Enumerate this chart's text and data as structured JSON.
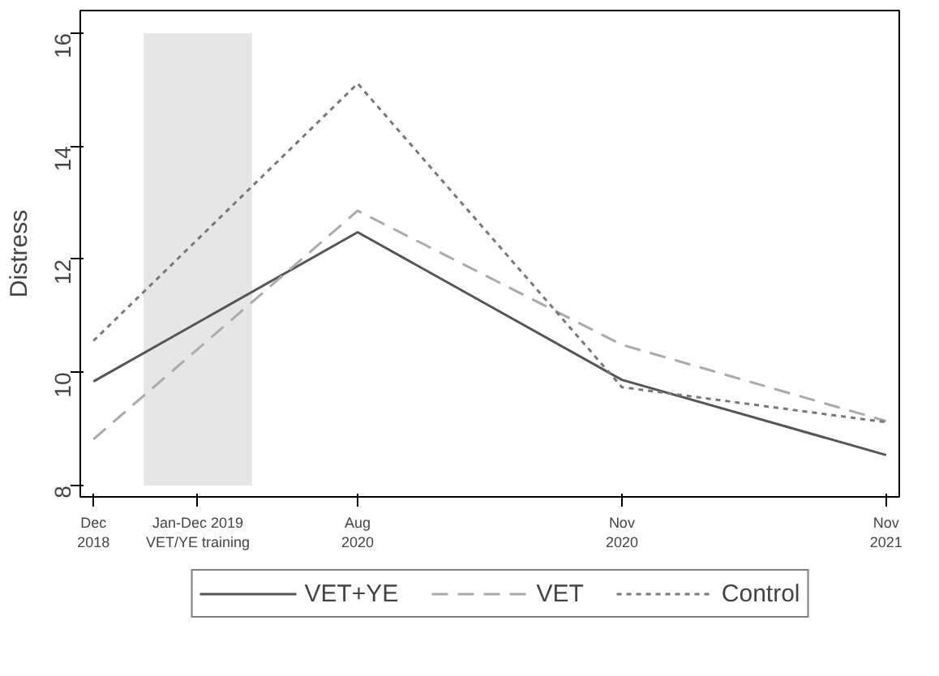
{
  "chart_data": {
    "type": "line",
    "ylabel": "Distress",
    "categories": [
      "Dec\n2018",
      "Aug\n2020",
      "Nov\n2020",
      "Nov\n2021"
    ],
    "ylim": [
      7.8,
      16.4
    ],
    "yticks": [
      8,
      10,
      12,
      14,
      16
    ],
    "bands": [
      {
        "axis": "x",
        "from": "Dec\n2018",
        "to": "Aug\n2020",
        "color": "#e6e6e6",
        "label": "Jan-Dec 2019\nVET/YE training"
      }
    ],
    "series": [
      {
        "name": "VET+YE",
        "color": "#555555",
        "line_style": "solid",
        "values": [
          9.84,
          12.48,
          9.87,
          8.54
        ]
      },
      {
        "name": "VET",
        "color": "#aaaaaa",
        "line_style": "dashed",
        "values": [
          8.82,
          12.86,
          10.49,
          9.14
        ]
      },
      {
        "name": "Control",
        "color": "#777777",
        "line_style": "dotted",
        "values": [
          10.56,
          15.11,
          9.74,
          9.12
        ]
      }
    ],
    "grid": false,
    "legend": "bottom"
  }
}
